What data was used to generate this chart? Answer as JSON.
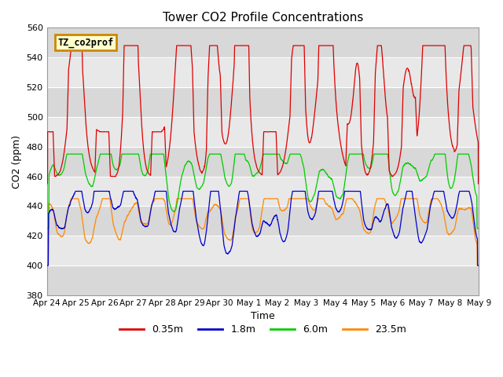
{
  "title": "Tower CO2 Profile Concentrations",
  "xlabel": "Time",
  "ylabel": "CO2 (ppm)",
  "ylim": [
    380,
    560
  ],
  "yticks": [
    380,
    400,
    420,
    440,
    460,
    480,
    500,
    520,
    540,
    560
  ],
  "background_color": "#ffffff",
  "plot_bg_color": "#f0f0f0",
  "legend_label": "TZ_co2prof",
  "legend_bg": "#ffffcc",
  "legend_edge": "#cc8800",
  "series_labels": [
    "0.35m",
    "1.8m",
    "6.0m",
    "23.5m"
  ],
  "series_colors": [
    "#dd0000",
    "#0000cc",
    "#00cc00",
    "#ff8800"
  ],
  "xticklabels": [
    "Apr 24",
    "Apr 25",
    "Apr 26",
    "Apr 27",
    "Apr 28",
    "Apr 29",
    "Apr 30",
    "May 1",
    "May 2",
    "May 3",
    "May 4",
    "May 5",
    "May 6",
    "May 7",
    "May 8",
    "May 9"
  ],
  "n_days": 15.5
}
